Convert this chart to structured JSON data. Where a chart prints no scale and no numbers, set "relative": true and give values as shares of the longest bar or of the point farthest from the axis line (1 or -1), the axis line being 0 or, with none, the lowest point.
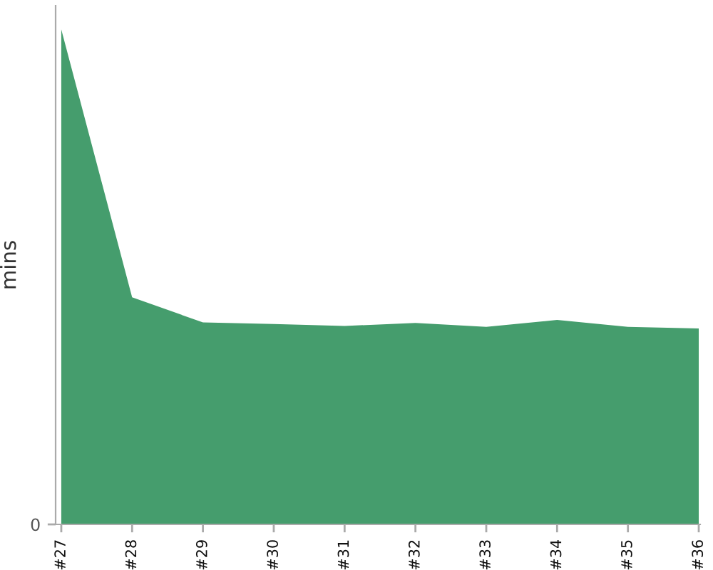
{
  "chart_data": {
    "type": "area",
    "ylabel": "mins",
    "categories": [
      "#27",
      "#28",
      "#29",
      "#30",
      "#31",
      "#32",
      "#33",
      "#34",
      "#35",
      "#36"
    ],
    "values": [
      1,
      0.459,
      0.408,
      0.405,
      0.401,
      0.407,
      0.399,
      0.413,
      0.399,
      0.396
    ],
    "color": "#459d6d",
    "relative": true,
    "annotations": [
      "0"
    ]
  }
}
